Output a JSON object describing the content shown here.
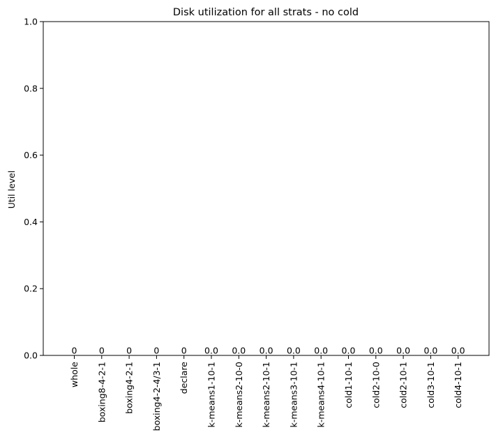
{
  "chart_data": {
    "type": "bar",
    "title": "Disk utilization for all strats - no cold",
    "xlabel": "",
    "ylabel": "Util level",
    "ylim": [
      0,
      1.0
    ],
    "yticks": [
      "0.0",
      "0.2",
      "0.4",
      "0.6",
      "0.8",
      "1.0"
    ],
    "grid": false,
    "categories": [
      "whole",
      "boxing8-4-2-1",
      "boxing4-2-1",
      "boxing4-2-4/3-1",
      "declare",
      "k-means1-10-1",
      "k-means2-10-0",
      "k-means2-10-1",
      "k-means3-10-1",
      "k-means4-10-1",
      "cold1-10-1",
      "cold2-10-0",
      "cold2-10-1",
      "cold3-10-1",
      "cold4-10-1"
    ],
    "values": [
      0,
      0,
      0,
      0,
      0,
      0.0,
      0.0,
      0.0,
      0.0,
      0.0,
      0.0,
      0.0,
      0.0,
      0.0,
      0.0
    ],
    "data_labels": [
      "0",
      "0",
      "0",
      "0",
      "0",
      "0.0",
      "0.0",
      "0.0",
      "0.0",
      "0.0",
      "0.0",
      "0.0",
      "0.0",
      "0.0",
      "0.0"
    ],
    "bar_color": "#1f77b4"
  }
}
